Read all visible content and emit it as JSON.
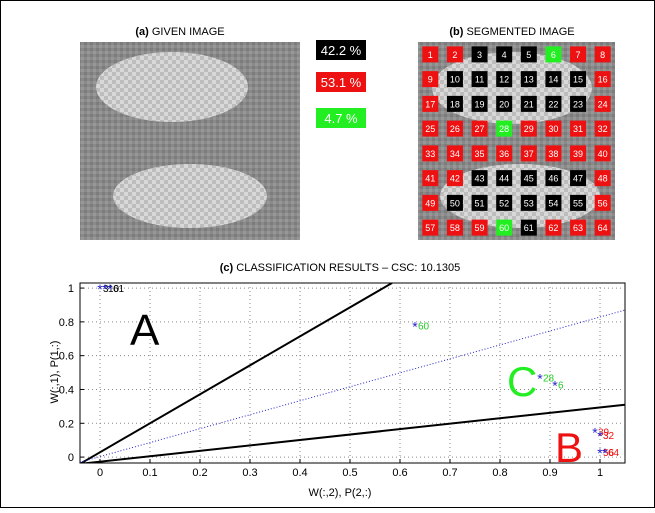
{
  "panel_a": {
    "title_bold": "(a)",
    "title": "GIVEN IMAGE"
  },
  "class_shares": {
    "values": [
      42.2,
      53.1,
      4.7
    ],
    "value_labels": [
      "42.2 %",
      "53.1 %",
      "4.7 %"
    ],
    "colors": [
      "#000000",
      "#ee1111",
      "#22ee22"
    ]
  },
  "panel_b": {
    "title_bold": "(b)",
    "title": "SEGMENTED IMAGE",
    "segments": [
      "1",
      "2",
      "3",
      "4",
      "5",
      "6",
      "7",
      "8",
      "9",
      "10",
      "11",
      "12",
      "13",
      "14",
      "15",
      "16",
      "17",
      "18",
      "19",
      "20",
      "21",
      "22",
      "23",
      "24",
      "25",
      "26",
      "27",
      "28",
      "29",
      "30",
      "31",
      "32",
      "33",
      "34",
      "35",
      "36",
      "37",
      "38",
      "39",
      "40",
      "41",
      "42",
      "43",
      "44",
      "45",
      "46",
      "47",
      "48",
      "49",
      "50",
      "51",
      "52",
      "53",
      "54",
      "55",
      "56",
      "57",
      "58",
      "59",
      "60",
      "61",
      "62",
      "63",
      "64"
    ],
    "segment_colors": [
      "#ee1111",
      "#ee1111",
      "#000000",
      "#000000",
      "#000000",
      "#22ee22",
      "#ee1111",
      "#ee1111",
      "#ee1111",
      "#000000",
      "#000000",
      "#000000",
      "#000000",
      "#000000",
      "#000000",
      "#ee1111",
      "#ee1111",
      "#000000",
      "#000000",
      "#000000",
      "#000000",
      "#000000",
      "#000000",
      "#ee1111",
      "#ee1111",
      "#ee1111",
      "#ee1111",
      "#22ee22",
      "#ee1111",
      "#ee1111",
      "#ee1111",
      "#ee1111",
      "#ee1111",
      "#ee1111",
      "#ee1111",
      "#ee1111",
      "#ee1111",
      "#ee1111",
      "#ee1111",
      "#ee1111",
      "#ee1111",
      "#ee1111",
      "#000000",
      "#000000",
      "#000000",
      "#000000",
      "#000000",
      "#ee1111",
      "#ee1111",
      "#000000",
      "#000000",
      "#000000",
      "#000000",
      "#000000",
      "#000000",
      "#ee1111",
      "#ee1111",
      "#ee1111",
      "#ee1111",
      "#22ee22",
      "#000000",
      "#ee1111",
      "#ee1111",
      "#ee1111"
    ]
  },
  "chart_data": {
    "type": "scatter",
    "title_bold": "(c)",
    "title": "CLASSIFICATION RESULTS – CSC: 10.1305",
    "x_label": "W(:,2), P(2,:)",
    "y_label": "W(:,1), P(1,:)",
    "x": [
      0,
      0.01,
      0.02,
      0.63,
      0.88,
      0.91,
      0.99,
      1.0,
      1.0,
      1.01
    ],
    "y": [
      1,
      1,
      1,
      0.78,
      0.47,
      0.43,
      0.15,
      0.13,
      0.03,
      0.03
    ],
    "point_labels": [
      "3",
      "10",
      "61",
      "60",
      "28",
      "6",
      "39",
      "32",
      "56",
      "64"
    ],
    "point_colors": [
      "#000000",
      "#000000",
      "#000000",
      "#22cc22",
      "#22cc22",
      "#22cc22",
      "#ee1111",
      "#ee1111",
      "#ee1111",
      "#ee1111"
    ],
    "marker_color": "#2222cc",
    "xlim": [
      -0.04,
      1.05
    ],
    "ylim": [
      -0.035,
      1.03
    ],
    "xticks": [
      0,
      0.1,
      0.2,
      0.3,
      0.4,
      0.5,
      0.6,
      0.7,
      0.8,
      0.9,
      1
    ],
    "yticks": [
      0,
      0.2,
      0.4,
      0.6,
      0.8,
      1
    ],
    "grid": true,
    "boundaries": [
      {
        "x": [
          -0.04,
          0.584
        ],
        "y": [
          -0.04,
          1.03
        ],
        "color": "#000000",
        "style": "solid"
      },
      {
        "x": [
          -0.04,
          1.05
        ],
        "y": [
          -0.04,
          0.31
        ],
        "color": "#000000",
        "style": "solid"
      },
      {
        "x": [
          -0.04,
          1.05
        ],
        "y": [
          -0.03,
          0.87
        ],
        "color": "#2222cc",
        "style": "dotted"
      }
    ],
    "regions": [
      {
        "label": "A",
        "color": "#000000"
      },
      {
        "label": "B",
        "color": "#ee1111"
      },
      {
        "label": "C",
        "color": "#22ee22"
      }
    ]
  }
}
